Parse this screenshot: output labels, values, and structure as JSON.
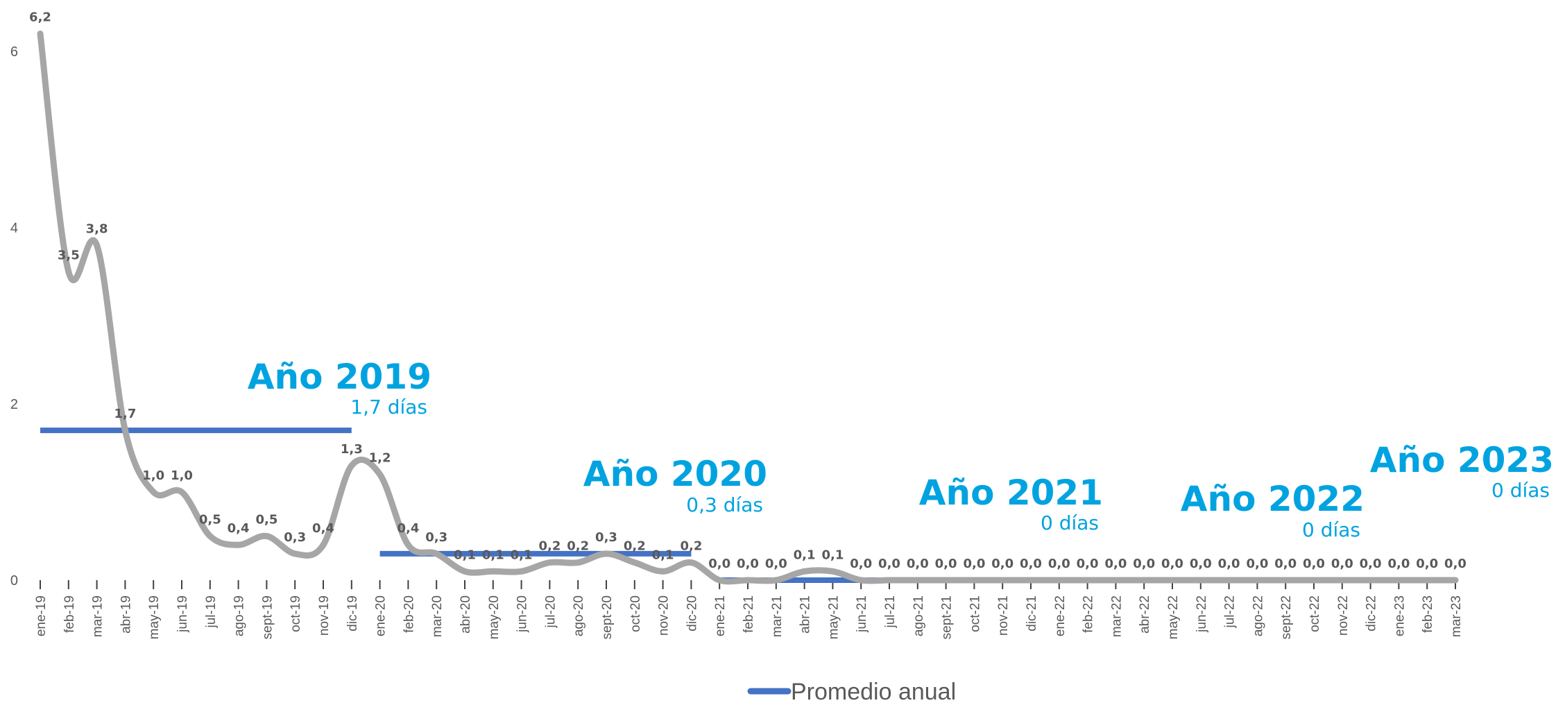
{
  "chart_data": {
    "type": "line",
    "title": "",
    "xlabel": "",
    "ylabel": "",
    "ylim": [
      0,
      6.2
    ],
    "yticks": [
      "0",
      "2",
      "4",
      "6"
    ],
    "grid": false,
    "legend_position": "bottom",
    "categories": [
      "ene-19",
      "feb-19",
      "mar-19",
      "abr-19",
      "may-19",
      "jun-19",
      "jul-19",
      "ago-19",
      "sept-19",
      "oct-19",
      "nov-19",
      "dic-19",
      "ene-20",
      "feb-20",
      "mar-20",
      "abr-20",
      "may-20",
      "jun-20",
      "jul-20",
      "ago-20",
      "sept-20",
      "oct-20",
      "nov-20",
      "dic-20",
      "ene-21",
      "feb-21",
      "mar-21",
      "abr-21",
      "may-21",
      "jun-21",
      "jul-21",
      "ago-21",
      "sept-21",
      "oct-21",
      "nov-21",
      "dic-21",
      "ene-22",
      "feb-22",
      "mar-22",
      "abr-22",
      "may-22",
      "jun-22",
      "jul-22",
      "ago-22",
      "sept-22",
      "oct-22",
      "nov-22",
      "dic-22",
      "ene-23",
      "feb-23",
      "mar-23"
    ],
    "series": [
      {
        "values": [
          6.2,
          3.5,
          3.8,
          1.7,
          1.0,
          1.0,
          0.5,
          0.4,
          0.5,
          0.3,
          0.4,
          1.3,
          1.2,
          0.4,
          0.3,
          0.1,
          0.1,
          0.1,
          0.2,
          0.2,
          0.3,
          0.2,
          0.1,
          0.2,
          0.0,
          0.0,
          0.0,
          0.1,
          0.1,
          0.0,
          0.0,
          0.0,
          0.0,
          0.0,
          0.0,
          0.0,
          0.0,
          0.0,
          0.0,
          0.0,
          0.0,
          0.0,
          0.0,
          0.0,
          0.0,
          0.0,
          0.0,
          0.0,
          0.0,
          0.0,
          0.0
        ],
        "labels": [
          "6,2",
          "3,5",
          "3,8",
          "1,7",
          "1,0",
          "1,0",
          "0,5",
          "0,4",
          "0,5",
          "0,3",
          "0,4",
          "1,3",
          "1,2",
          "0,4",
          "0,3",
          "0,1",
          "0,1",
          "0,1",
          "0,2",
          "0,2",
          "0,3",
          "0,2",
          "0,1",
          "0,2",
          "0,0",
          "0,0",
          "0,0",
          "0,1",
          "0,1",
          "0,0",
          "0,0",
          "0,0",
          "0,0",
          "0,0",
          "0,0",
          "0,0",
          "0,0",
          "0,0",
          "0,0",
          "0,0",
          "0,0",
          "0,0",
          "0,0",
          "0,0",
          "0,0",
          "0,0",
          "0,0",
          "0,0",
          "0,0",
          "0,0",
          "0,0"
        ],
        "color": "#A6A6A6"
      },
      {
        "name": "Promedio anual",
        "color": "#4472C4",
        "segments": [
          {
            "from": "ene-19",
            "to": "dic-19",
            "value": 1.7
          },
          {
            "from": "ene-20",
            "to": "dic-20",
            "value": 0.3
          },
          {
            "from": "ene-21",
            "to": "dic-21",
            "value": 0.0
          },
          {
            "from": "ene-22",
            "to": "dic-22",
            "value": 0.0
          },
          {
            "from": "ene-23",
            "to": "mar-23",
            "value": 0.0
          }
        ]
      }
    ],
    "annotations": [
      {
        "title": "Año 2019",
        "subtitle": "1,7 días"
      },
      {
        "title": "Año 2020",
        "subtitle": "0,3 días"
      },
      {
        "title": "Año 2021",
        "subtitle": "0 días"
      },
      {
        "title": "Año 2022",
        "subtitle": "0 días"
      },
      {
        "title": "Año 2023",
        "subtitle": "0 días"
      }
    ]
  },
  "legend": {
    "label": "Promedio anual",
    "color": "#4472C4"
  },
  "colors": {
    "annotation": "#00A3E0",
    "line": "#A6A6A6",
    "average": "#4472C4",
    "text": "#595959"
  }
}
